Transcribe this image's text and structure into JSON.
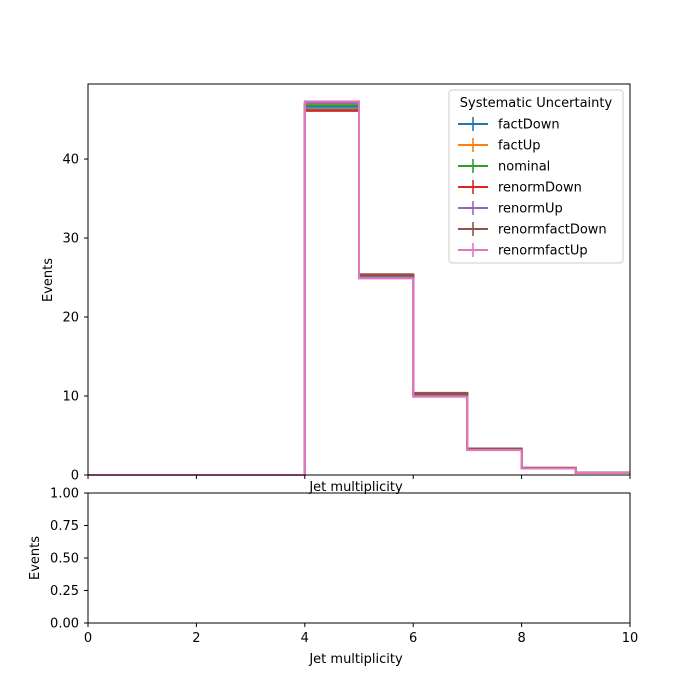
{
  "chart_data": [
    {
      "type": "line",
      "drawstyle": "steps",
      "bin_edges": [
        0,
        1,
        2,
        3,
        4,
        5,
        6,
        7,
        8,
        9,
        10
      ],
      "xlabel": "Jet multiplicity",
      "ylabel": "Events",
      "xlim": [
        0,
        10
      ],
      "ylim": [
        0,
        49.5
      ],
      "yticks": [
        0,
        10,
        20,
        30,
        40
      ],
      "yticklabels": [
        "0",
        "10",
        "20",
        "30",
        "40"
      ],
      "grid": false,
      "legend": {
        "title": "Systematic Uncertainty",
        "placement": "top-right"
      },
      "series": [
        {
          "name": "factDown",
          "color": "#1f77b4",
          "values": [
            0,
            0,
            0,
            0,
            46.6,
            25.4,
            10.3,
            3.3,
            0.9,
            0.3
          ]
        },
        {
          "name": "factUp",
          "color": "#ff7f0e",
          "values": [
            0,
            0,
            0,
            0,
            46.9,
            25.0,
            10.0,
            3.2,
            0.85,
            0.28
          ]
        },
        {
          "name": "nominal",
          "color": "#2ca02c",
          "values": [
            0,
            0,
            0,
            0,
            46.8,
            25.2,
            10.1,
            3.25,
            0.87,
            0.29
          ]
        },
        {
          "name": "renormDown",
          "color": "#d62728",
          "values": [
            0,
            0,
            0,
            0,
            46.1,
            25.3,
            10.3,
            3.3,
            0.9,
            0.3
          ]
        },
        {
          "name": "renormUp",
          "color": "#9467bd",
          "values": [
            0,
            0,
            0,
            0,
            47.1,
            25.0,
            10.0,
            3.2,
            0.85,
            0.28
          ]
        },
        {
          "name": "renormfactDown",
          "color": "#8c564b",
          "values": [
            0,
            0,
            0,
            0,
            46.3,
            25.4,
            10.4,
            3.35,
            0.9,
            0.3
          ]
        },
        {
          "name": "renormfactUp",
          "color": "#e377c2",
          "values": [
            0,
            0,
            0,
            0,
            47.3,
            24.9,
            9.9,
            3.15,
            0.83,
            0.27
          ]
        }
      ]
    },
    {
      "type": "line",
      "xlabel": "Jet multiplicity",
      "ylabel": "Events",
      "xlim": [
        0,
        10
      ],
      "ylim": [
        0,
        1
      ],
      "xticks": [
        0,
        2,
        4,
        6,
        8,
        10
      ],
      "xticklabels": [
        "0",
        "2",
        "4",
        "6",
        "8",
        "10"
      ],
      "yticks": [
        0,
        0.25,
        0.5,
        0.75,
        1.0
      ],
      "yticklabels": [
        "0.00",
        "0.25",
        "0.50",
        "0.75",
        "1.00"
      ],
      "grid": false,
      "series": []
    }
  ]
}
